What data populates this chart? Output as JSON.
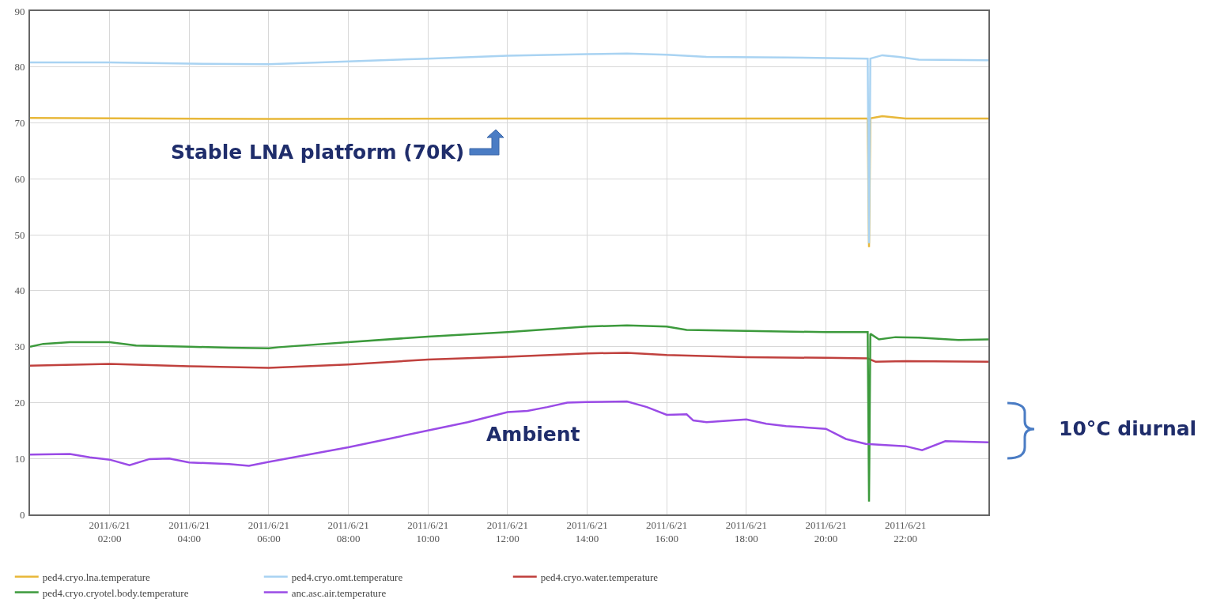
{
  "chart_data": {
    "type": "line",
    "annotations": [
      "Stable LNA platform (70K)",
      "Ambient",
      "10°C diurnal"
    ],
    "xlim": [
      "2011-06-21T00:00",
      "2011-06-22T00:05"
    ],
    "xticks": [
      {
        "value": "2011-06-21T02:00",
        "label": "2011/6/21\n02:00"
      },
      {
        "value": "2011-06-21T04:00",
        "label": "2011/6/21\n04:00"
      },
      {
        "value": "2011-06-21T06:00",
        "label": "2011/6/21\n06:00"
      },
      {
        "value": "2011-06-21T08:00",
        "label": "2011/6/21\n08:00"
      },
      {
        "value": "2011-06-21T10:00",
        "label": "2011/6/21\n10:00"
      },
      {
        "value": "2011-06-21T12:00",
        "label": "2011/6/21\n12:00"
      },
      {
        "value": "2011-06-21T14:00",
        "label": "2011/6/21\n14:00"
      },
      {
        "value": "2011-06-21T16:00",
        "label": "2011/6/21\n16:00"
      },
      {
        "value": "2011-06-21T18:00",
        "label": "2011/6/21\n18:00"
      },
      {
        "value": "2011-06-21T20:00",
        "label": "2011/6/21\n20:00"
      },
      {
        "value": "2011-06-21T22:00",
        "label": "2011/6/21\n22:00"
      }
    ],
    "ylim": [
      0,
      90
    ],
    "yticks": [
      0,
      10,
      20,
      30,
      40,
      50,
      60,
      70,
      80,
      90
    ],
    "grid": true,
    "legend": "bottom left",
    "marker": "none",
    "line_style": "solid",
    "series": [
      {
        "name": "ped4.cryo.lna.temperature",
        "color": "#e8b83a",
        "x": [
          "2011-06-21T00:00",
          "2011-06-21T06:00",
          "2011-06-21T12:00",
          "2011-06-21T21:03",
          "2011-06-21T21:05",
          "2011-06-21T21:07",
          "2011-06-21T21:25",
          "2011-06-21T22:00",
          "2011-06-22T00:05"
        ],
        "values": [
          70.9,
          70.7,
          70.8,
          70.8,
          47.8,
          70.8,
          71.2,
          70.8,
          70.8
        ]
      },
      {
        "name": "ped4.cryo.omt.temperature",
        "color": "#a9d3f2",
        "x": [
          "2011-06-21T00:00",
          "2011-06-21T02:00",
          "2011-06-21T04:00",
          "2011-06-21T06:00",
          "2011-06-21T08:00",
          "2011-06-21T10:00",
          "2011-06-21T12:00",
          "2011-06-21T14:00",
          "2011-06-21T15:00",
          "2011-06-21T16:00",
          "2011-06-21T17:00",
          "2011-06-21T19:00",
          "2011-06-21T21:03",
          "2011-06-21T21:05",
          "2011-06-21T21:07",
          "2011-06-21T21:25",
          "2011-06-21T21:50",
          "2011-06-21T22:20",
          "2011-06-22T00:05"
        ],
        "values": [
          80.8,
          80.8,
          80.6,
          80.5,
          81.0,
          81.5,
          82.0,
          82.3,
          82.4,
          82.2,
          81.8,
          81.7,
          81.5,
          48.5,
          81.5,
          82.1,
          81.8,
          81.3,
          81.2
        ]
      },
      {
        "name": "ped4.cryo.water.temperature",
        "color": "#c0413e",
        "x": [
          "2011-06-21T00:00",
          "2011-06-21T02:00",
          "2011-06-21T04:00",
          "2011-06-21T06:00",
          "2011-06-21T08:00",
          "2011-06-21T10:00",
          "2011-06-21T12:00",
          "2011-06-21T14:00",
          "2011-06-21T15:00",
          "2011-06-21T16:00",
          "2011-06-21T18:00",
          "2011-06-21T20:00",
          "2011-06-21T21:03",
          "2011-06-21T21:15",
          "2011-06-21T22:00",
          "2011-06-22T00:05"
        ],
        "values": [
          26.6,
          26.9,
          26.5,
          26.2,
          26.8,
          27.7,
          28.2,
          28.8,
          28.9,
          28.5,
          28.1,
          28.0,
          27.9,
          27.3,
          27.4,
          27.3
        ]
      },
      {
        "name": "ped4.cryo.cryotel.body.temperature",
        "color": "#3c9a3c",
        "x": [
          "2011-06-21T00:00",
          "2011-06-21T00:20",
          "2011-06-21T01:00",
          "2011-06-21T02:00",
          "2011-06-21T02:40",
          "2011-06-21T04:00",
          "2011-06-21T05:00",
          "2011-06-21T06:00",
          "2011-06-21T06:15",
          "2011-06-21T08:00",
          "2011-06-21T10:00",
          "2011-06-21T12:00",
          "2011-06-21T14:00",
          "2011-06-21T15:00",
          "2011-06-21T16:00",
          "2011-06-21T16:30",
          "2011-06-21T18:00",
          "2011-06-21T20:00",
          "2011-06-21T21:03",
          "2011-06-21T21:05",
          "2011-06-21T21:07",
          "2011-06-21T21:20",
          "2011-06-21T21:45",
          "2011-06-21T22:20",
          "2011-06-21T23:20",
          "2011-06-22T00:05"
        ],
        "values": [
          30.0,
          30.5,
          30.8,
          30.8,
          30.2,
          30.0,
          29.8,
          29.7,
          29.9,
          30.8,
          31.8,
          32.6,
          33.6,
          33.8,
          33.6,
          33.0,
          32.8,
          32.6,
          32.6,
          2.3,
          32.3,
          31.3,
          31.7,
          31.6,
          31.2,
          31.3
        ]
      },
      {
        "name": "anc.asc.air.temperature",
        "color": "#9a4be6",
        "x": [
          "2011-06-21T00:00",
          "2011-06-21T01:00",
          "2011-06-21T01:30",
          "2011-06-21T02:00",
          "2011-06-21T02:30",
          "2011-06-21T03:00",
          "2011-06-21T03:30",
          "2011-06-21T04:00",
          "2011-06-21T05:00",
          "2011-06-21T05:30",
          "2011-06-21T06:00",
          "2011-06-21T07:00",
          "2011-06-21T08:00",
          "2011-06-21T09:00",
          "2011-06-21T10:00",
          "2011-06-21T11:00",
          "2011-06-21T12:00",
          "2011-06-21T12:30",
          "2011-06-21T13:00",
          "2011-06-21T13:30",
          "2011-06-21T14:00",
          "2011-06-21T15:00",
          "2011-06-21T15:30",
          "2011-06-21T16:00",
          "2011-06-21T16:30",
          "2011-06-21T16:40",
          "2011-06-21T17:00",
          "2011-06-21T18:00",
          "2011-06-21T18:30",
          "2011-06-21T19:00",
          "2011-06-21T20:00",
          "2011-06-21T20:30",
          "2011-06-21T21:00",
          "2011-06-21T22:00",
          "2011-06-21T22:25",
          "2011-06-21T23:00",
          "2011-06-22T00:05"
        ],
        "values": [
          10.7,
          10.8,
          10.2,
          9.8,
          8.8,
          9.9,
          10.0,
          9.3,
          9.0,
          8.7,
          9.4,
          10.7,
          12.0,
          13.5,
          15.0,
          16.5,
          18.3,
          18.5,
          19.2,
          20.0,
          20.1,
          20.2,
          19.2,
          17.8,
          17.9,
          16.8,
          16.5,
          17.0,
          16.2,
          15.8,
          15.3,
          13.5,
          12.6,
          12.2,
          11.5,
          13.1,
          12.9
        ]
      }
    ]
  }
}
